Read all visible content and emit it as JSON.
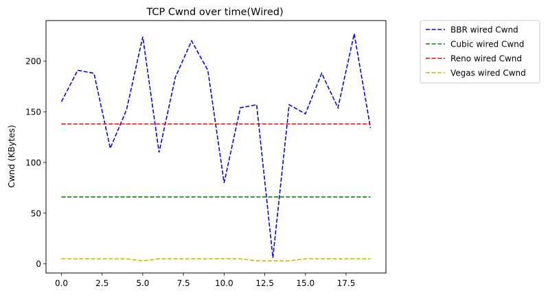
{
  "chart_data": {
    "type": "line",
    "title": "TCP Cwnd over time(Wired)",
    "xlabel": "",
    "ylabel": "Cwnd (KBytes)",
    "xlim": [
      -0.95,
      19.95
    ],
    "ylim": [
      -9,
      240
    ],
    "xticks": [
      0,
      2.5,
      5,
      7.5,
      10,
      12.5,
      15,
      17.5
    ],
    "xtick_labels": [
      "0.0",
      "2.5",
      "5.0",
      "7.5",
      "10.0",
      "12.5",
      "15.0",
      "17.5"
    ],
    "yticks": [
      0,
      50,
      100,
      150,
      200
    ],
    "ytick_labels": [
      "0",
      "50",
      "100",
      "150",
      "200"
    ],
    "grid": false,
    "legend_position": "outside-upper-right",
    "x": [
      0,
      1,
      2,
      3,
      4,
      5,
      6,
      7,
      8,
      9,
      10,
      11,
      12,
      13,
      14,
      15,
      16,
      17,
      18,
      19
    ],
    "series": [
      {
        "name": "BBR wired Cwnd",
        "color": "#0000ff",
        "style": "dashed",
        "values": [
          160,
          191,
          188,
          114,
          152,
          224,
          110,
          184,
          220,
          191,
          80,
          154,
          157,
          6,
          157,
          148,
          188,
          154,
          227,
          134
        ]
      },
      {
        "name": "Cubic wired Cwnd",
        "color": "#008000",
        "style": "dashed",
        "values": [
          66,
          66,
          66,
          66,
          66,
          66,
          66,
          66,
          66,
          66,
          66,
          66,
          66,
          66,
          66,
          66,
          66,
          66,
          66,
          66
        ]
      },
      {
        "name": "Reno wired Cwnd",
        "color": "#ff0000",
        "style": "dashed",
        "values": [
          138,
          138,
          138,
          138,
          138,
          138,
          138,
          138,
          138,
          138,
          138,
          138,
          138,
          138,
          138,
          138,
          138,
          138,
          138,
          138
        ]
      },
      {
        "name": "Vegas wired Cwnd",
        "color": "#bfbf00",
        "style": "dashed",
        "values": [
          5,
          5,
          5,
          5,
          5,
          3,
          5,
          5,
          5,
          5,
          5,
          5,
          3,
          3,
          3,
          5,
          5,
          5,
          5,
          5
        ]
      }
    ]
  }
}
